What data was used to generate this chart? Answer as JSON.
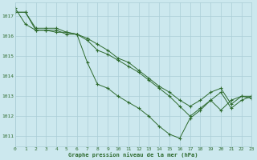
{
  "xlabel": "Graphe pression niveau de la mer (hPa)",
  "background_color": "#cce8ee",
  "grid_color": "#aacdd6",
  "line_color": "#2d6a2d",
  "x_min": 0,
  "x_max": 23,
  "y_min": 1010.5,
  "y_max": 1017.7,
  "yticks": [
    1011,
    1012,
    1013,
    1014,
    1015,
    1016,
    1017
  ],
  "xticks": [
    0,
    1,
    2,
    3,
    4,
    5,
    6,
    7,
    8,
    9,
    10,
    11,
    12,
    13,
    14,
    15,
    16,
    17,
    18,
    19,
    20,
    21,
    22,
    23
  ],
  "series": [
    [
      1017.4,
      1016.6,
      1016.3,
      1016.3,
      1016.2,
      1016.2,
      1016.1,
      1014.7,
      1013.6,
      1013.4,
      1013.0,
      1012.7,
      1012.4,
      1012.0,
      1011.5,
      1011.1,
      1010.9,
      1011.9,
      1012.3,
      1012.8,
      1012.3,
      1012.8,
      1013.0,
      1012.9
    ],
    [
      1017.2,
      1017.2,
      1016.3,
      1016.3,
      1016.3,
      1016.1,
      1016.1,
      1015.8,
      1015.3,
      1015.1,
      1014.8,
      1014.5,
      1014.2,
      1013.8,
      1013.4,
      1013.0,
      1012.5,
      1012.0,
      1012.4,
      1012.8,
      1013.2,
      1012.4,
      1012.8,
      1013.0
    ],
    [
      1017.2,
      1017.2,
      1016.4,
      1016.4,
      1016.4,
      1016.2,
      1016.1,
      1015.9,
      1015.6,
      1015.3,
      1014.9,
      1014.7,
      1014.3,
      1013.9,
      1013.5,
      1013.2,
      1012.8,
      1012.5,
      1012.8,
      1013.2,
      1013.4,
      1012.6,
      1013.0,
      1013.0
    ]
  ]
}
